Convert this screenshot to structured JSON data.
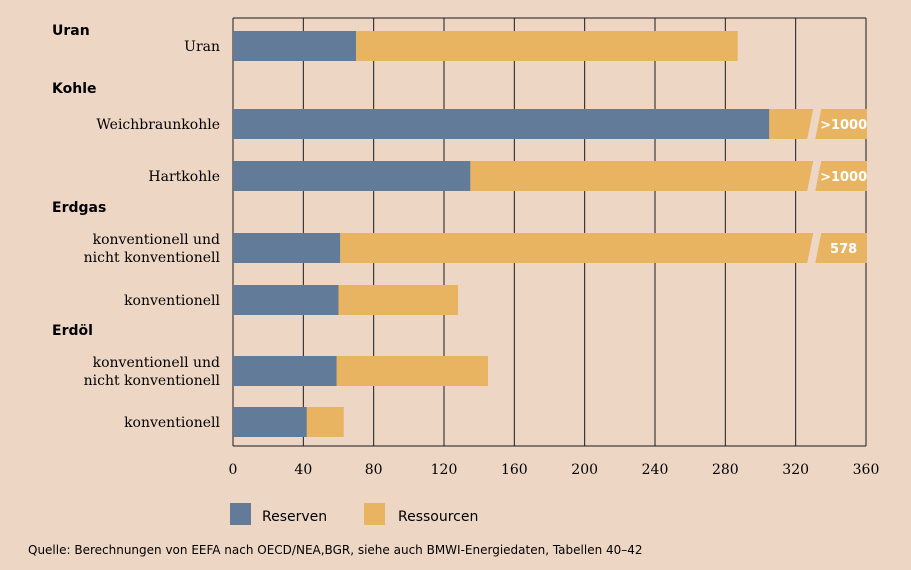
{
  "colors": {
    "background": "#eed6c5",
    "reserven": "#627b98",
    "ressourcen": "#e8b462",
    "grid": "#1a1a1a"
  },
  "chart_data": {
    "type": "bar",
    "orientation": "horizontal",
    "stacked": true,
    "xlim": [
      0,
      360
    ],
    "x_ticks": [
      0,
      40,
      80,
      120,
      160,
      200,
      240,
      280,
      320,
      360
    ],
    "grid": true,
    "legend_position": "bottom-left",
    "series": [
      {
        "name": "Reserven",
        "color": "#627b98"
      },
      {
        "name": "Ressourcen",
        "color": "#e8b462"
      }
    ],
    "groups": [
      {
        "name": "Uran",
        "bars": [
          {
            "label": "Uran",
            "reserven": 70,
            "ressourcen": 217
          }
        ]
      },
      {
        "name": "Kohle",
        "bars": [
          {
            "label": "Weichbraunkohle",
            "reserven": 305,
            "total_label": ">1000",
            "truncated": true
          },
          {
            "label": "Hartkohle",
            "reserven": 135,
            "total_label": ">1000",
            "truncated": true
          }
        ]
      },
      {
        "name": "Erdgas",
        "bars": [
          {
            "label": "konventionell und\nnicht konventionell",
            "reserven": 61,
            "total_label": "578",
            "truncated": true
          },
          {
            "label": "konventionell",
            "reserven": 60,
            "ressourcen": 68
          }
        ]
      },
      {
        "name": "Erdöl",
        "bars": [
          {
            "label": "konventionell und\nnicht konventionell",
            "reserven": 59,
            "ressourcen": 86
          }
        ]
      },
      {
        "name": "",
        "bars": [
          {
            "label": "konventionell",
            "reserven": 42,
            "ressourcen": 21
          }
        ]
      }
    ],
    "source": "Quelle: Berechnungen von EEFA nach OECD/NEA,BGR, siehe auch BMWI-Energiedaten, Tabellen 40–42"
  }
}
